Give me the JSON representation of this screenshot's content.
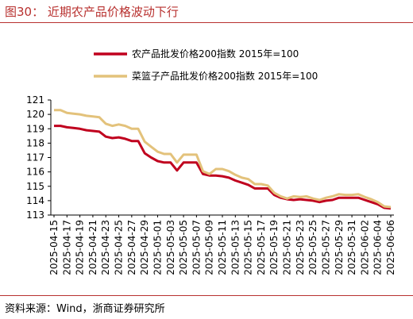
{
  "figure": {
    "title": "图30：  近期农产品价格波动下行",
    "source": "资料来源：Wind，浙商证券研究所"
  },
  "chart_data": {
    "type": "line",
    "title": "",
    "xlabel": "",
    "ylabel": "",
    "ylim": [
      113,
      121
    ],
    "yticks": [
      113,
      114,
      115,
      116,
      117,
      118,
      119,
      120,
      121
    ],
    "grid": false,
    "legend_position": "top-center",
    "x_tick_labels": [
      "2025-04-15",
      "2025-04-17",
      "2025-04-19",
      "2025-04-21",
      "2025-04-23",
      "2025-04-25",
      "2025-04-27",
      "2025-04-29",
      "2025-05-01",
      "2025-05-03",
      "2025-05-05",
      "2025-05-07",
      "2025-05-09",
      "2025-05-11",
      "2025-05-13",
      "2025-05-15",
      "2025-05-17",
      "2025-05-19",
      "2025-05-21",
      "2025-05-23",
      "2025-05-25",
      "2025-05-27",
      "2025-05-29",
      "2025-05-31",
      "2025-06-02",
      "2025-06-04",
      "2025-06-06"
    ],
    "x": [
      "2025-04-15",
      "2025-04-16",
      "2025-04-17",
      "2025-04-18",
      "2025-04-19",
      "2025-04-20",
      "2025-04-21",
      "2025-04-22",
      "2025-04-23",
      "2025-04-24",
      "2025-04-25",
      "2025-04-26",
      "2025-04-27",
      "2025-04-28",
      "2025-04-29",
      "2025-04-30",
      "2025-05-01",
      "2025-05-02",
      "2025-05-03",
      "2025-05-04",
      "2025-05-05",
      "2025-05-06",
      "2025-05-07",
      "2025-05-08",
      "2025-05-09",
      "2025-05-10",
      "2025-05-11",
      "2025-05-12",
      "2025-05-13",
      "2025-05-14",
      "2025-05-15",
      "2025-05-16",
      "2025-05-17",
      "2025-05-18",
      "2025-05-19",
      "2025-05-20",
      "2025-05-21",
      "2025-05-22",
      "2025-05-23",
      "2025-05-24",
      "2025-05-25",
      "2025-05-26",
      "2025-05-27",
      "2025-05-28",
      "2025-05-29",
      "2025-05-30",
      "2025-05-31",
      "2025-06-01",
      "2025-06-02",
      "2025-06-03",
      "2025-06-04",
      "2025-06-05",
      "2025-06-06"
    ],
    "series": [
      {
        "name": "农产品批发价格200指数 2015年=100",
        "color": "#c0001e",
        "values": [
          119.2,
          119.2,
          119.1,
          119.05,
          119.0,
          118.9,
          118.85,
          118.8,
          118.45,
          118.35,
          118.4,
          118.3,
          118.15,
          118.15,
          117.3,
          117.0,
          116.75,
          116.65,
          116.65,
          116.1,
          116.65,
          116.65,
          116.65,
          115.85,
          115.75,
          115.75,
          115.7,
          115.6,
          115.4,
          115.25,
          115.1,
          114.85,
          114.85,
          114.85,
          114.4,
          114.2,
          114.1,
          114.05,
          114.1,
          114.05,
          114.0,
          113.9,
          114.0,
          114.05,
          114.2,
          114.2,
          114.2,
          114.2,
          114.05,
          113.9,
          113.75,
          113.5,
          113.45
        ]
      },
      {
        "name": "菜篮子产品批发价格200指数 2015年=100",
        "color": "#e3c27b",
        "values": [
          120.3,
          120.3,
          120.1,
          120.05,
          120.0,
          119.9,
          119.85,
          119.8,
          119.35,
          119.2,
          119.3,
          119.2,
          119.0,
          119.0,
          118.1,
          117.75,
          117.4,
          117.25,
          117.25,
          116.65,
          117.2,
          117.2,
          117.2,
          116.05,
          115.85,
          116.2,
          116.2,
          116.05,
          115.8,
          115.6,
          115.5,
          115.15,
          115.15,
          115.05,
          114.55,
          114.3,
          114.15,
          114.3,
          114.25,
          114.3,
          114.15,
          114.05,
          114.2,
          114.3,
          114.45,
          114.4,
          114.4,
          114.45,
          114.25,
          114.1,
          113.9,
          113.6,
          113.55
        ]
      }
    ]
  }
}
